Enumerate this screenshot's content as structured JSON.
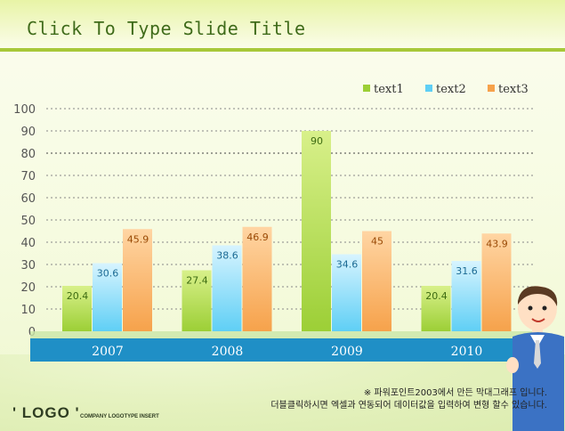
{
  "slide": {
    "title": "Click To Type Slide Title",
    "note_line1": "※ 파워포인트2003에서 만든 막대그래프 입니다.",
    "note_line2": "더블클릭하시면 엑셀과 연동되어 데이터값을 입력하여 변형 할수 있습니다.",
    "logo": "' LOGO '",
    "logo_sub": "COMPANY LOGOTYPE INSERT"
  },
  "colors": {
    "text1": "#9ccf36",
    "text2": "#5fcff5",
    "text3": "#f6a24b",
    "axis_band": "#1f8fc6"
  },
  "chart_data": {
    "type": "bar",
    "categories": [
      "2007",
      "2008",
      "2009",
      "2010"
    ],
    "series": [
      {
        "name": "text1",
        "values": [
          20.4,
          27.4,
          90,
          20.4
        ]
      },
      {
        "name": "text2",
        "values": [
          30.6,
          38.6,
          34.6,
          31.6
        ]
      },
      {
        "name": "text3",
        "values": [
          45.9,
          46.9,
          45,
          43.9
        ]
      }
    ],
    "ylim": [
      0,
      100
    ],
    "yticks": [
      0,
      10,
      20,
      30,
      40,
      50,
      60,
      70,
      80,
      90,
      100
    ],
    "grid": true,
    "legend_position": "top-right",
    "data_labels": true
  }
}
